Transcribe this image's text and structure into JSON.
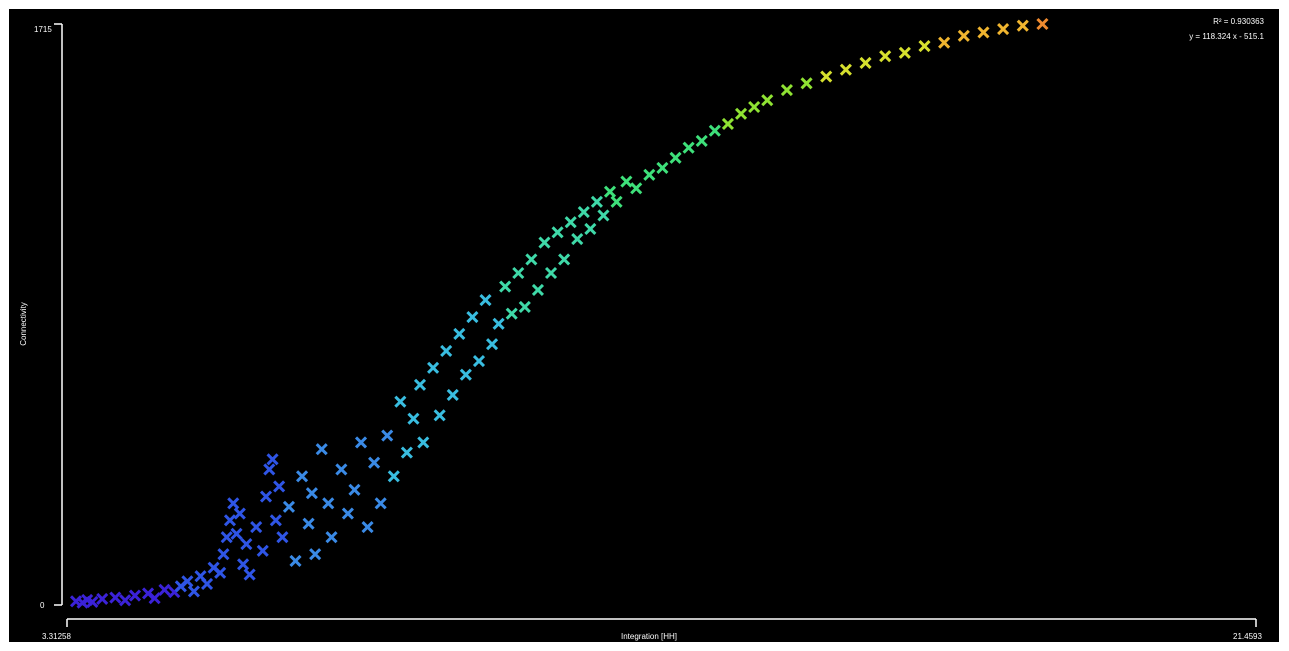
{
  "chart_data": {
    "type": "scatter",
    "title": "",
    "xlabel": "Integration [HH]",
    "ylabel": "Connectivity",
    "xlim": [
      3.31258,
      21.4593
    ],
    "ylim": [
      0,
      1715
    ],
    "x_tick_labels": [
      "3.31258",
      "21.4593"
    ],
    "y_tick_labels": [
      "0",
      "1715"
    ],
    "regression": {
      "r_squared_label": "R² = 0.930363",
      "equation_label": "y = 118.324 x - 515.1"
    },
    "marker": "x",
    "colormap": [
      "#3b22d8",
      "#2f55e6",
      "#3a8ae6",
      "#39bde0",
      "#3fd9a8",
      "#3ee07a",
      "#8fe233",
      "#d6e02e",
      "#f0b52f",
      "#ef8a2f",
      "#e8342a"
    ],
    "grid": false,
    "legend": "none",
    "series": [
      {
        "points": [
          [
            3.45,
            11
          ],
          [
            3.55,
            7
          ],
          [
            3.62,
            15
          ],
          [
            3.7,
            9
          ],
          [
            3.85,
            18
          ],
          [
            4.05,
            22
          ],
          [
            4.2,
            14
          ],
          [
            4.35,
            28
          ],
          [
            4.55,
            34
          ],
          [
            4.65,
            20
          ],
          [
            4.8,
            45
          ],
          [
            4.95,
            38
          ],
          [
            5.05,
            55
          ],
          [
            5.15,
            70
          ],
          [
            5.25,
            40
          ],
          [
            5.35,
            85
          ],
          [
            5.45,
            62
          ],
          [
            5.55,
            110
          ],
          [
            5.65,
            95
          ],
          [
            5.7,
            150
          ],
          [
            5.75,
            200
          ],
          [
            5.8,
            250
          ],
          [
            5.85,
            300
          ],
          [
            5.9,
            210
          ],
          [
            5.95,
            270
          ],
          [
            6.0,
            120
          ],
          [
            6.05,
            180
          ],
          [
            6.1,
            90
          ],
          [
            6.2,
            230
          ],
          [
            6.3,
            160
          ],
          [
            6.35,
            320
          ],
          [
            6.4,
            400
          ],
          [
            6.45,
            430
          ],
          [
            6.5,
            250
          ],
          [
            6.55,
            350
          ],
          [
            6.6,
            200
          ],
          [
            6.7,
            290
          ],
          [
            6.8,
            130
          ],
          [
            6.9,
            380
          ],
          [
            7.0,
            240
          ],
          [
            7.05,
            330
          ],
          [
            7.1,
            150
          ],
          [
            7.2,
            460
          ],
          [
            7.3,
            300
          ],
          [
            7.35,
            200
          ],
          [
            7.5,
            400
          ],
          [
            7.6,
            270
          ],
          [
            7.7,
            340
          ],
          [
            7.8,
            480
          ],
          [
            7.9,
            230
          ],
          [
            8.0,
            420
          ],
          [
            8.1,
            300
          ],
          [
            8.2,
            500
          ],
          [
            8.3,
            380
          ],
          [
            8.4,
            600
          ],
          [
            8.5,
            450
          ],
          [
            8.6,
            550
          ],
          [
            8.7,
            650
          ],
          [
            8.75,
            480
          ],
          [
            8.9,
            700
          ],
          [
            9.0,
            560
          ],
          [
            9.1,
            750
          ],
          [
            9.2,
            620
          ],
          [
            9.3,
            800
          ],
          [
            9.4,
            680
          ],
          [
            9.5,
            850
          ],
          [
            9.6,
            720
          ],
          [
            9.7,
            900
          ],
          [
            9.8,
            770
          ],
          [
            9.9,
            830
          ],
          [
            10.0,
            940
          ],
          [
            10.1,
            860
          ],
          [
            10.2,
            980
          ],
          [
            10.3,
            880
          ],
          [
            10.4,
            1020
          ],
          [
            10.5,
            930
          ],
          [
            10.6,
            1070
          ],
          [
            10.7,
            980
          ],
          [
            10.8,
            1100
          ],
          [
            10.9,
            1020
          ],
          [
            11.0,
            1130
          ],
          [
            11.1,
            1080
          ],
          [
            11.2,
            1160
          ],
          [
            11.3,
            1110
          ],
          [
            11.4,
            1190
          ],
          [
            11.5,
            1150
          ],
          [
            11.6,
            1220
          ],
          [
            11.7,
            1190
          ],
          [
            11.85,
            1250
          ],
          [
            12.0,
            1230
          ],
          [
            12.2,
            1270
          ],
          [
            12.4,
            1290
          ],
          [
            12.6,
            1320
          ],
          [
            12.8,
            1350
          ],
          [
            13.0,
            1370
          ],
          [
            13.2,
            1400
          ],
          [
            13.4,
            1420
          ],
          [
            13.6,
            1450
          ],
          [
            13.8,
            1470
          ],
          [
            14.0,
            1490
          ],
          [
            14.3,
            1520
          ],
          [
            14.6,
            1540
          ],
          [
            14.9,
            1560
          ],
          [
            15.2,
            1580
          ],
          [
            15.5,
            1600
          ],
          [
            15.8,
            1620
          ],
          [
            16.1,
            1630
          ],
          [
            16.4,
            1650
          ],
          [
            16.7,
            1660
          ],
          [
            17.0,
            1680
          ],
          [
            17.3,
            1690
          ],
          [
            17.6,
            1700
          ],
          [
            17.9,
            1710
          ],
          [
            18.2,
            1715
          ]
        ]
      }
    ]
  }
}
